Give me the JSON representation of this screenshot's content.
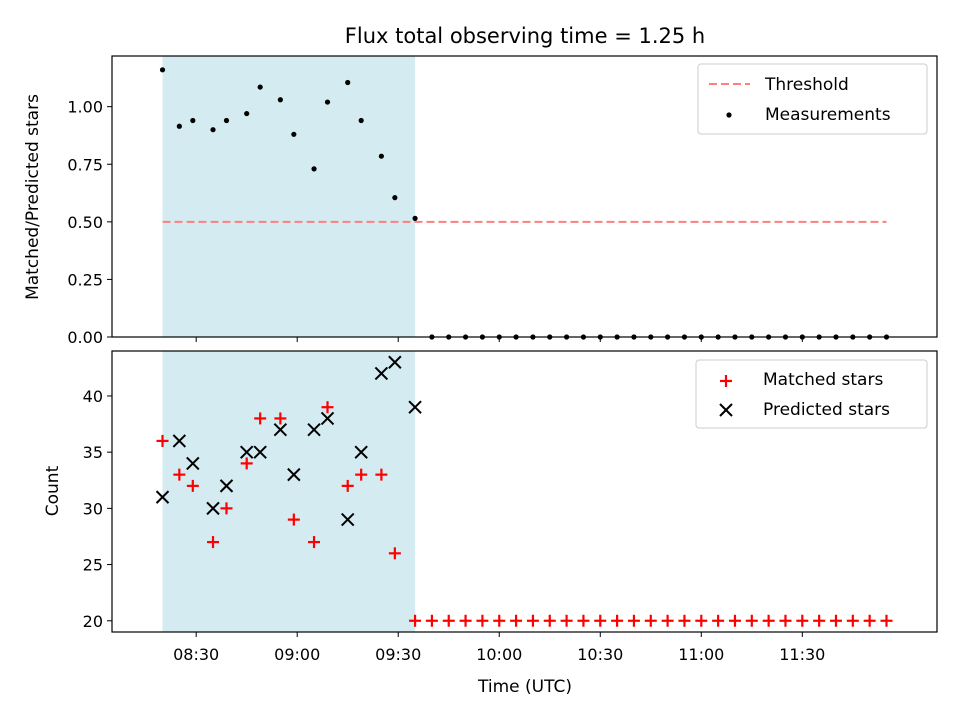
{
  "chart_data": [
    {
      "type": "scatter",
      "title": "Flux total observing time = 1.25 h",
      "xlabel": "",
      "ylabel": "Matched/Predicted stars",
      "ylim": [
        0,
        1.22
      ],
      "yticks": [
        "0.00",
        "0.25",
        "0.50",
        "0.75",
        "1.00"
      ],
      "shaded_region": {
        "start": "08:20",
        "end": "09:35",
        "color": "#add8e6"
      },
      "legend_position": "top-right",
      "threshold": {
        "name": "Threshold",
        "value": 0.5,
        "start": "08:20",
        "end": "11:55",
        "color": "#ff7f7f"
      },
      "series": [
        {
          "name": "Measurements",
          "color": "#000000",
          "x": [
            "08:20",
            "08:25",
            "08:29",
            "08:35",
            "08:39",
            "08:45",
            "08:49",
            "08:55",
            "08:59",
            "09:05",
            "09:09",
            "09:15",
            "09:19",
            "09:25",
            "09:29",
            "09:35",
            "09:40",
            "09:45",
            "09:50",
            "09:55",
            "10:00",
            "10:05",
            "10:10",
            "10:15",
            "10:20",
            "10:25",
            "10:30",
            "10:35",
            "10:40",
            "10:45",
            "10:50",
            "10:55",
            "11:00",
            "11:05",
            "11:10",
            "11:15",
            "11:20",
            "11:25",
            "11:30",
            "11:35",
            "11:40",
            "11:45",
            "11:50",
            "11:55"
          ],
          "y": [
            1.16,
            0.915,
            0.94,
            0.9,
            0.94,
            0.97,
            1.085,
            1.03,
            0.88,
            0.73,
            1.02,
            1.105,
            0.94,
            0.785,
            0.605,
            0.515,
            0,
            0,
            0,
            0,
            0,
            0,
            0,
            0,
            0,
            0,
            0,
            0,
            0,
            0,
            0,
            0,
            0,
            0,
            0,
            0,
            0,
            0,
            0,
            0,
            0,
            0,
            0,
            0
          ]
        }
      ]
    },
    {
      "type": "scatter",
      "xlabel": "Time (UTC)",
      "ylabel": "Count",
      "ylim": [
        19,
        44
      ],
      "yticks": [
        "20",
        "25",
        "30",
        "35",
        "40"
      ],
      "xticks": [
        "08:30",
        "09:00",
        "09:30",
        "10:00",
        "10:30",
        "11:00",
        "11:30"
      ],
      "shaded_region": {
        "start": "08:20",
        "end": "09:35",
        "color": "#add8e6"
      },
      "legend_position": "top-right",
      "series": [
        {
          "name": "Matched stars",
          "marker": "+",
          "color": "#ff0000",
          "x": [
            "08:20",
            "08:25",
            "08:29",
            "08:35",
            "08:39",
            "08:45",
            "08:49",
            "08:55",
            "08:59",
            "09:05",
            "09:09",
            "09:15",
            "09:19",
            "09:25",
            "09:29",
            "09:35",
            "09:40",
            "09:45",
            "09:50",
            "09:55",
            "10:00",
            "10:05",
            "10:10",
            "10:15",
            "10:20",
            "10:25",
            "10:30",
            "10:35",
            "10:40",
            "10:45",
            "10:50",
            "10:55",
            "11:00",
            "11:05",
            "11:10",
            "11:15",
            "11:20",
            "11:25",
            "11:30",
            "11:35",
            "11:40",
            "11:45",
            "11:50",
            "11:55"
          ],
          "y": [
            36,
            33,
            32,
            27,
            30,
            34,
            38,
            38,
            29,
            27,
            39,
            32,
            33,
            33,
            26,
            20,
            20,
            20,
            20,
            20,
            20,
            20,
            20,
            20,
            20,
            20,
            20,
            20,
            20,
            20,
            20,
            20,
            20,
            20,
            20,
            20,
            20,
            20,
            20,
            20,
            20,
            20,
            20,
            20
          ]
        },
        {
          "name": "Predicted stars",
          "marker": "x",
          "color": "#000000",
          "x": [
            "08:20",
            "08:25",
            "08:29",
            "08:35",
            "08:39",
            "08:45",
            "08:49",
            "08:55",
            "08:59",
            "09:05",
            "09:09",
            "09:15",
            "09:19",
            "09:25",
            "09:29",
            "09:35"
          ],
          "y": [
            31,
            36,
            34,
            30,
            32,
            35,
            35,
            37,
            33,
            37,
            38,
            29,
            35,
            42,
            43,
            39
          ]
        }
      ]
    }
  ]
}
